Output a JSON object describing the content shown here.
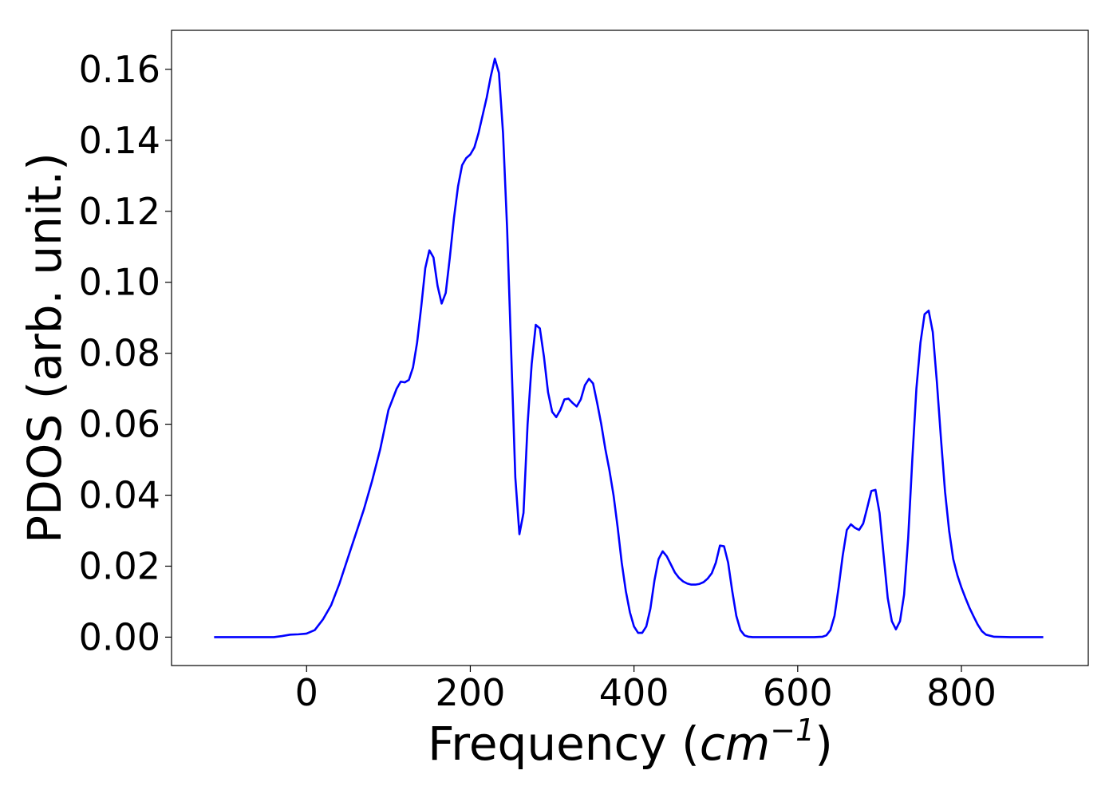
{
  "chart_data": {
    "type": "line",
    "title": "",
    "xlabel": "Frequency (",
    "xlabel_math": "cm",
    "xlabel_sup": "−1",
    "xlabel_close": ")",
    "ylabel": "PDOS (arb. unit.)",
    "xlim": [
      -165,
      955
    ],
    "ylim": [
      -0.008,
      0.171
    ],
    "xticks": [
      0,
      200,
      400,
      600,
      800
    ],
    "xtick_labels": [
      "0",
      "200",
      "400",
      "600",
      "800"
    ],
    "yticks": [
      0.0,
      0.02,
      0.04,
      0.06,
      0.08,
      0.1,
      0.12,
      0.14,
      0.16
    ],
    "ytick_labels": [
      "0.00",
      "0.02",
      "0.04",
      "0.06",
      "0.08",
      "0.10",
      "0.12",
      "0.14",
      "0.16"
    ],
    "grid": false,
    "legend": "none",
    "line_color": "#0000ff",
    "series": [
      {
        "x": [
          -113,
          -40,
          -30,
          -20,
          -10,
          0,
          10,
          20,
          30,
          40,
          50,
          60,
          70,
          80,
          90,
          100,
          110,
          115,
          120,
          125,
          130,
          135,
          140,
          145,
          150,
          155,
          160,
          165,
          170,
          175,
          180,
          185,
          190,
          195,
          200,
          205,
          210,
          215,
          220,
          225,
          230,
          235,
          240,
          245,
          250,
          255,
          260,
          265,
          270,
          275,
          280,
          285,
          290,
          295,
          300,
          305,
          310,
          315,
          320,
          325,
          330,
          335,
          340,
          345,
          350,
          355,
          360,
          365,
          370,
          375,
          380,
          385,
          390,
          395,
          400,
          405,
          410,
          415,
          420,
          425,
          430,
          435,
          440,
          445,
          450,
          455,
          460,
          465,
          470,
          475,
          480,
          485,
          490,
          495,
          500,
          505,
          510,
          515,
          520,
          525,
          530,
          535,
          540,
          545,
          550,
          560,
          580,
          600,
          620,
          630,
          635,
          640,
          645,
          650,
          655,
          660,
          665,
          670,
          675,
          680,
          685,
          690,
          695,
          700,
          705,
          710,
          715,
          720,
          725,
          730,
          735,
          740,
          745,
          750,
          755,
          760,
          765,
          770,
          775,
          780,
          785,
          790,
          795,
          800,
          805,
          810,
          815,
          820,
          825,
          830,
          840,
          860,
          900
        ],
        "y": [
          0.0,
          0.0,
          0.0003,
          0.0007,
          0.0008,
          0.001,
          0.002,
          0.005,
          0.009,
          0.015,
          0.022,
          0.029,
          0.036,
          0.044,
          0.053,
          0.064,
          0.07,
          0.072,
          0.0718,
          0.0725,
          0.076,
          0.083,
          0.093,
          0.104,
          0.109,
          0.107,
          0.099,
          0.094,
          0.097,
          0.107,
          0.118,
          0.127,
          0.133,
          0.135,
          0.136,
          0.138,
          0.142,
          0.147,
          0.152,
          0.158,
          0.163,
          0.159,
          0.142,
          0.115,
          0.08,
          0.045,
          0.029,
          0.035,
          0.06,
          0.077,
          0.088,
          0.087,
          0.079,
          0.069,
          0.0635,
          0.062,
          0.064,
          0.067,
          0.0672,
          0.066,
          0.065,
          0.067,
          0.071,
          0.0728,
          0.0715,
          0.066,
          0.06,
          0.053,
          0.047,
          0.04,
          0.031,
          0.021,
          0.013,
          0.007,
          0.003,
          0.0012,
          0.0012,
          0.003,
          0.008,
          0.016,
          0.022,
          0.0242,
          0.0228,
          0.0205,
          0.0182,
          0.0167,
          0.0157,
          0.0151,
          0.0148,
          0.0148,
          0.015,
          0.0155,
          0.0165,
          0.018,
          0.021,
          0.0258,
          0.0256,
          0.021,
          0.013,
          0.006,
          0.002,
          0.0005,
          0.0001,
          0.0,
          0.0,
          0.0,
          0.0,
          0.0,
          0.0,
          0.0001,
          0.0005,
          0.002,
          0.006,
          0.014,
          0.023,
          0.0302,
          0.0318,
          0.0308,
          0.0302,
          0.032,
          0.0365,
          0.0412,
          0.0415,
          0.035,
          0.023,
          0.011,
          0.0045,
          0.0022,
          0.0045,
          0.012,
          0.028,
          0.05,
          0.07,
          0.083,
          0.091,
          0.092,
          0.086,
          0.072,
          0.056,
          0.041,
          0.03,
          0.022,
          0.0175,
          0.014,
          0.011,
          0.0082,
          0.0058,
          0.0035,
          0.0017,
          0.0007,
          0.0001,
          0.0,
          0.0
        ]
      }
    ]
  }
}
